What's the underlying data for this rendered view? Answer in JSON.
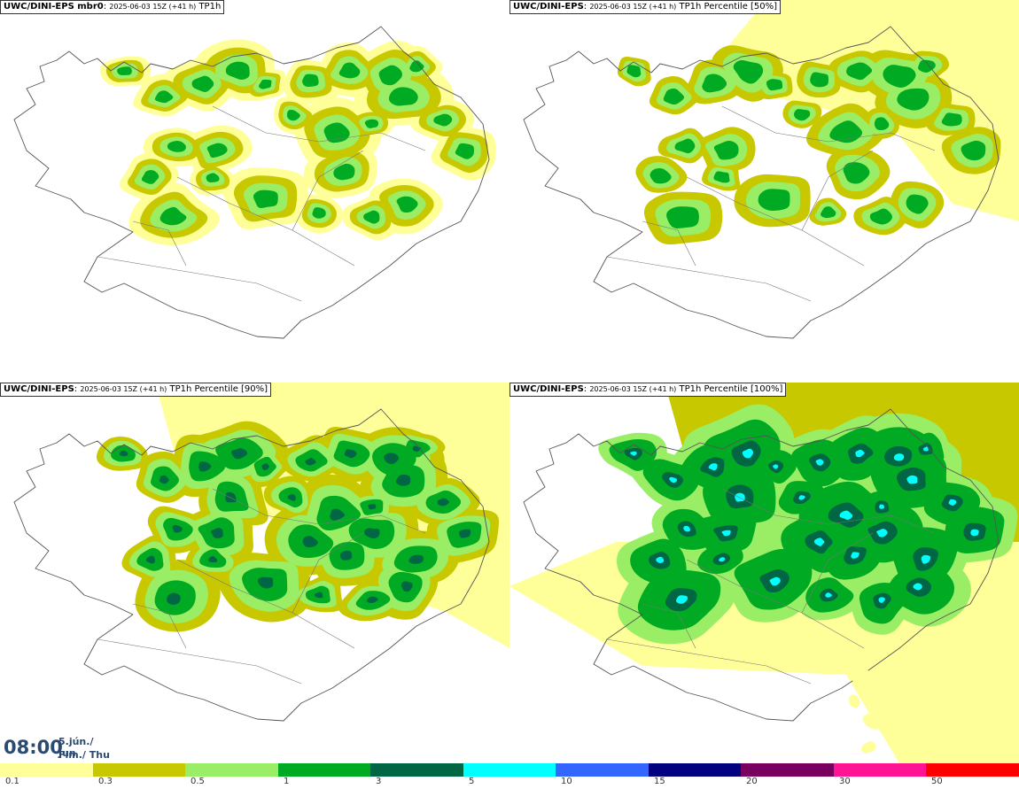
{
  "panels": [
    {
      "model": "UWC/DINI-EPS mbr0",
      "run": "2025-06-03 15Z (+41 h)",
      "field": "TP1h"
    },
    {
      "model": "UWC/DINI-EPS",
      "run": "2025-06-03 15Z (+41 h)",
      "field": "TP1h Percentile [50%]"
    },
    {
      "model": "UWC/DINI-EPS",
      "run": "2025-06-03 15Z (+41 h)",
      "field": "TP1h Percentile [90%]"
    },
    {
      "model": "UWC/DINI-EPS",
      "run": "2025-06-03 15Z (+41 h)",
      "field": "TP1h Percentile [100%]"
    }
  ],
  "valid_time": {
    "time": "08:00",
    "date": "5.jún./ Jun",
    "weekday": "Fim./ Thu"
  },
  "colorbar": {
    "labels": [
      "0.1",
      "0.3",
      "0.5",
      "1",
      "3",
      "5",
      "10",
      "15",
      "20",
      "30",
      "50"
    ],
    "colors": [
      "#ffff99",
      "#c8c800",
      "#99ee66",
      "#00aa22",
      "#006644",
      "#00ffff",
      "#3366ff",
      "#000080",
      "#7a0060",
      "#ff1493",
      "#ff0000"
    ]
  }
}
